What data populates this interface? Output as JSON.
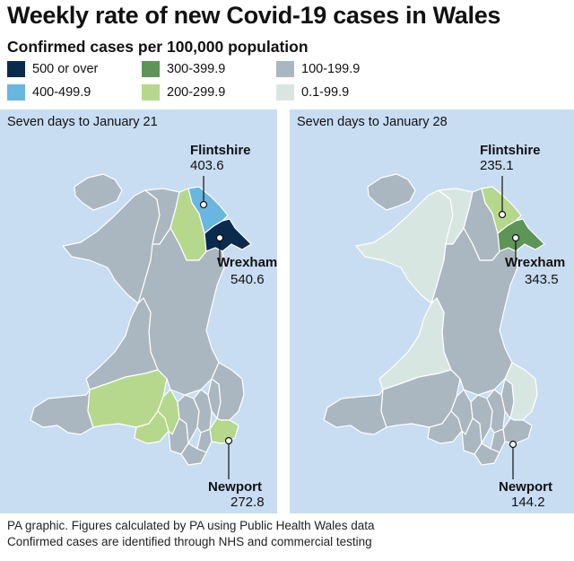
{
  "title": "Weekly rate of new Covid-19 cases in Wales",
  "subtitle": "Confirmed cases per 100,000 population",
  "legend": [
    {
      "label": "500 or over",
      "color": "#0a2a4e"
    },
    {
      "label": "300-399.9",
      "color": "#5d9556"
    },
    {
      "label": "100-199.9",
      "color": "#abb7c0"
    },
    {
      "label": "400-499.9",
      "color": "#69b6e0"
    },
    {
      "label": "200-299.9",
      "color": "#b6d88c"
    },
    {
      "label": "0.1-99.9",
      "color": "#d8e6e2"
    }
  ],
  "maps": [
    {
      "caption": "Seven days to January 21",
      "callouts": {
        "flintshire": {
          "name": "Flintshire",
          "value": "403.6"
        },
        "wrexham": {
          "name": "Wrexham",
          "value": "540.6"
        },
        "newport": {
          "name": "Newport",
          "value": "272.8"
        }
      }
    },
    {
      "caption": "Seven days to January 28",
      "callouts": {
        "flintshire": {
          "name": "Flintshire",
          "value": "235.1"
        },
        "wrexham": {
          "name": "Wrexham",
          "value": "343.5"
        },
        "newport": {
          "name": "Newport",
          "value": "144.2"
        }
      }
    }
  ],
  "footer": {
    "line1": "PA graphic. Figures calculated by PA using Public Health Wales data",
    "line2": "Confirmed cases are identified through NHS and commercial testing"
  }
}
